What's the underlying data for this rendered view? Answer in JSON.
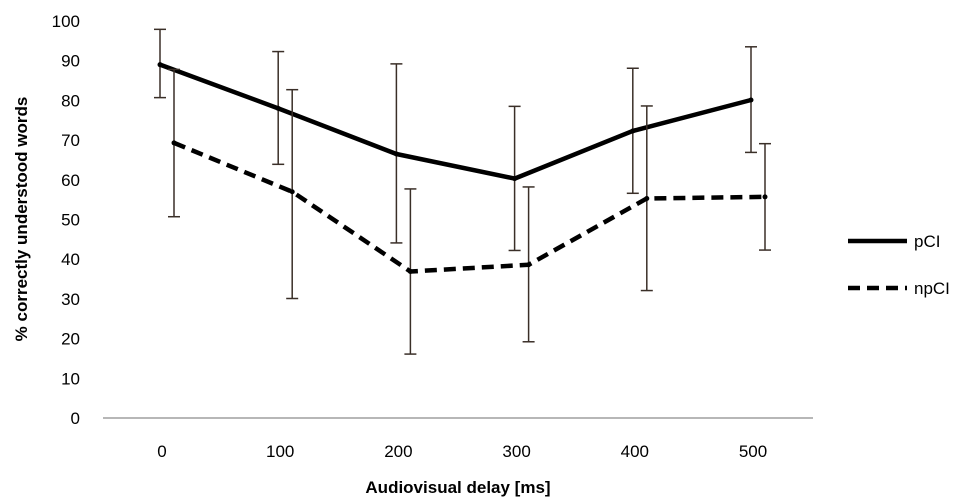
{
  "chart_data": {
    "type": "line",
    "title": "",
    "xlabel": "Audiovisual delay [ms]",
    "ylabel": "% correctly understood words",
    "categories": [
      "0",
      "100",
      "200",
      "300",
      "400",
      "500"
    ],
    "ylim": [
      0,
      100
    ],
    "yticks": [
      0,
      10,
      20,
      30,
      40,
      50,
      60,
      70,
      80,
      90,
      100
    ],
    "grid": false,
    "legend_position": "right",
    "series": [
      {
        "name": "pCI",
        "style": "solid",
        "color": "#000000",
        "values": [
          89,
          78,
          66.5,
          60.3,
          72.3,
          80.1
        ],
        "error_low": [
          80.7,
          63.9,
          44.1,
          42.2,
          56.6,
          66.9
        ],
        "error_high": [
          97.9,
          92.3,
          89.2,
          78.5,
          88.1,
          93.5
        ]
      },
      {
        "name": "npCI",
        "style": "dashed",
        "color": "#000000",
        "values": [
          69.3,
          57,
          36.9,
          38.6,
          55.3,
          55.7
        ],
        "error_low": [
          50.7,
          30.1,
          16.1,
          19.2,
          32.1,
          42.3
        ],
        "error_high": [
          87.8,
          82.7,
          57.7,
          58.2,
          78.6,
          69.1
        ]
      }
    ]
  }
}
